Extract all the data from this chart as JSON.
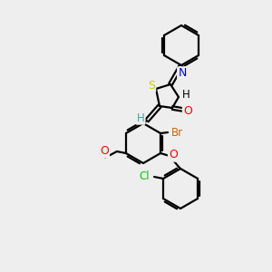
{
  "background_color": "#eeeeee",
  "atom_colors": {
    "S": "#cccc00",
    "N": "#0000ff",
    "O": "#ff0000",
    "Br": "#cc6600",
    "Cl": "#00cc00",
    "C": "#000000",
    "H": "#40a0a0"
  },
  "bond_color": "#000000",
  "bond_width": 1.6,
  "figsize": [
    3.0,
    3.0
  ],
  "dpi": 100
}
